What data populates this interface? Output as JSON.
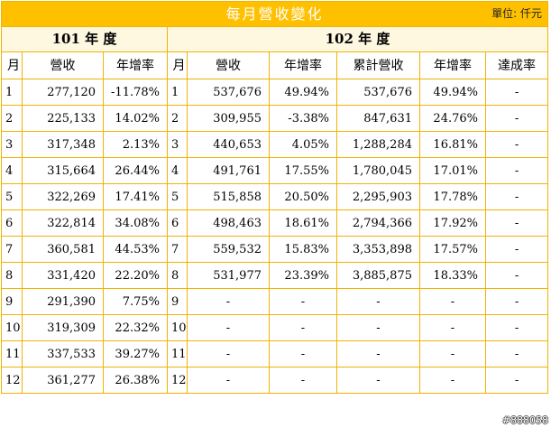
{
  "title": "每月營收變化",
  "unit": "單位: 仟元",
  "year1": {
    "label": "101 年 度"
  },
  "year2": {
    "label": "102 年 度"
  },
  "headers": {
    "y1": [
      "月",
      "營收",
      "年增率"
    ],
    "y2": [
      "月",
      "營收",
      "年增率",
      "累計營收",
      "年增率",
      "達成率"
    ]
  },
  "rows": [
    {
      "m1": "1",
      "rev1": "277,120",
      "yoy1": "-11.78%",
      "m2": "1",
      "rev2": "537,676",
      "yoy2": "49.94%",
      "cum": "537,676",
      "cumYoy": "49.94%",
      "ach": "-"
    },
    {
      "m1": "2",
      "rev1": "225,133",
      "yoy1": "14.02%",
      "m2": "2",
      "rev2": "309,955",
      "yoy2": "-3.38%",
      "cum": "847,631",
      "cumYoy": "24.76%",
      "ach": "-"
    },
    {
      "m1": "3",
      "rev1": "317,348",
      "yoy1": "2.13%",
      "m2": "3",
      "rev2": "440,653",
      "yoy2": "4.05%",
      "cum": "1,288,284",
      "cumYoy": "16.81%",
      "ach": "-"
    },
    {
      "m1": "4",
      "rev1": "315,664",
      "yoy1": "26.44%",
      "m2": "4",
      "rev2": "491,761",
      "yoy2": "17.55%",
      "cum": "1,780,045",
      "cumYoy": "17.01%",
      "ach": "-"
    },
    {
      "m1": "5",
      "rev1": "322,269",
      "yoy1": "17.41%",
      "m2": "5",
      "rev2": "515,858",
      "yoy2": "20.50%",
      "cum": "2,295,903",
      "cumYoy": "17.78%",
      "ach": "-"
    },
    {
      "m1": "6",
      "rev1": "322,814",
      "yoy1": "34.08%",
      "m2": "6",
      "rev2": "498,463",
      "yoy2": "18.61%",
      "cum": "2,794,366",
      "cumYoy": "17.92%",
      "ach": "-"
    },
    {
      "m1": "7",
      "rev1": "360,581",
      "yoy1": "44.53%",
      "m2": "7",
      "rev2": "559,532",
      "yoy2": "15.83%",
      "cum": "3,353,898",
      "cumYoy": "17.57%",
      "ach": "-"
    },
    {
      "m1": "8",
      "rev1": "331,420",
      "yoy1": "22.20%",
      "m2": "8",
      "rev2": "531,977",
      "yoy2": "23.39%",
      "cum": "3,885,875",
      "cumYoy": "18.33%",
      "ach": "-"
    },
    {
      "m1": "9",
      "rev1": "291,390",
      "yoy1": "7.75%",
      "m2": "9",
      "rev2": "-",
      "yoy2": "-",
      "cum": "-",
      "cumYoy": "-",
      "ach": "-"
    },
    {
      "m1": "10",
      "rev1": "319,309",
      "yoy1": "22.32%",
      "m2": "10",
      "rev2": "-",
      "yoy2": "-",
      "cum": "-",
      "cumYoy": "-",
      "ach": "-"
    },
    {
      "m1": "11",
      "rev1": "337,533",
      "yoy1": "39.27%",
      "m2": "11",
      "rev2": "-",
      "yoy2": "-",
      "cum": "-",
      "cumYoy": "-",
      "ach": "-"
    },
    {
      "m1": "12",
      "rev1": "361,277",
      "yoy1": "26.38%",
      "m2": "12",
      "rev2": "-",
      "yoy2": "-",
      "cum": "-",
      "cumYoy": "-",
      "ach": "-"
    }
  ],
  "watermark": "#888058"
}
